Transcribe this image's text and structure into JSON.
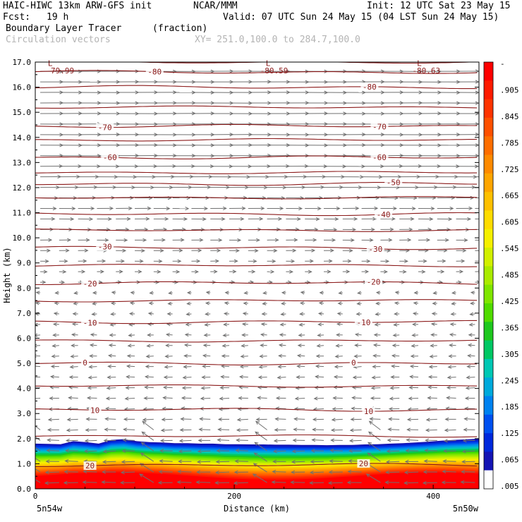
{
  "header": {
    "model": "HAIC-HIWC 13km ARW-GFS init",
    "org": "NCAR/MMM",
    "init": "Init: 12 UTC Sat 23 May 15",
    "fcst_label": "Fcst:",
    "fcst_value": "19 h",
    "valid": "Valid: 07 UTC Sun 24 May 15 (04 LST Sun 24 May 15)",
    "field_name": "Boundary Layer Tracer",
    "field_units": "(fraction)",
    "vector_label": "Circulation vectors",
    "xy_label": "XY= 251.0,100.0 to 284.7,100.0"
  },
  "colors": {
    "contour": "#8b1a1a",
    "vector": "#707070",
    "frame": "#000000",
    "grey_text": "#b4b4b4"
  },
  "chart_data": {
    "type": "heatmap",
    "title": "Boundary Layer Tracer",
    "units": "(fraction)",
    "xlabel": "Distance (km)",
    "ylabel": "Height (km)",
    "xlim": [
      0,
      446
    ],
    "ylim": [
      0,
      17
    ],
    "x_ticks": [
      0,
      200,
      400
    ],
    "y_ticks": [
      "0.0",
      "1.0",
      "2.0",
      "3.0",
      "4.0",
      "5.0",
      "6.0",
      "7.0",
      "8.0",
      "9.0",
      "10.0",
      "11.0",
      "12.0",
      "13.0",
      "14.0",
      "15.0",
      "16.0",
      "17.0"
    ],
    "x_endpoints": [
      "5n54w",
      "5n50w"
    ],
    "colorbar": {
      "labels": [
        "-",
        ".905",
        ".845",
        ".785",
        ".725",
        ".665",
        ".605",
        ".545",
        ".485",
        ".425",
        ".365",
        ".305",
        ".245",
        ".185",
        ".125",
        ".065",
        ".005"
      ],
      "colors": [
        "#ff0000",
        "#ff1a00",
        "#ff3300",
        "#ff5000",
        "#ff6e00",
        "#ff8a00",
        "#ffa500",
        "#ffc000",
        "#ffdc00",
        "#f5f000",
        "#d2f000",
        "#aaeb00",
        "#7fe600",
        "#50dc00",
        "#1ec81e",
        "#00c864",
        "#00c8b4",
        "#00aadc",
        "#0082f0",
        "#0050f0",
        "#0028dc",
        "#1414b4",
        "#ffffff"
      ]
    },
    "tracer_top_km": [
      1.8,
      1.79,
      1.78,
      1.9,
      1.86,
      1.8,
      1.95,
      1.98,
      1.9,
      1.86,
      1.85,
      1.82,
      1.82,
      1.8,
      1.8,
      1.78,
      1.78,
      1.77,
      1.77,
      1.76,
      1.76,
      1.75,
      1.75,
      1.74,
      1.75,
      1.75,
      1.77,
      1.78,
      1.8,
      1.82,
      1.85,
      1.88,
      1.92,
      1.95,
      1.97,
      2.0
    ],
    "isotherms": [
      {
        "label": "-80",
        "h": 16.6,
        "label_x": [
          120
        ]
      },
      {
        "label": "-80",
        "h": 16.0,
        "label_x": [
          336
        ]
      },
      {
        "label": "-70",
        "h": 14.45,
        "label_x": [
          70,
          346
        ]
      },
      {
        "label": "-60",
        "h": 13.2,
        "label_x": [
          75,
          346
        ]
      },
      {
        "label": "-50",
        "h": 12.15,
        "label_x": [
          360
        ]
      },
      {
        "label": "-40",
        "h": 10.95,
        "label_x": [
          350
        ]
      },
      {
        "label": "-30",
        "h": 9.6,
        "label_x": [
          70,
          342
        ]
      },
      {
        "label": "-20",
        "h": 8.2,
        "label_x": [
          55,
          340
        ]
      },
      {
        "label": "-10",
        "h": 6.65,
        "label_x": [
          55,
          330
        ]
      },
      {
        "label": "0",
        "h": 5.0,
        "label_x": [
          50,
          320
        ]
      },
      {
        "label": "10",
        "h": 3.15,
        "label_x": [
          60,
          335
        ]
      },
      {
        "label": "20",
        "h": 0.95,
        "label_x": [
          55,
          330
        ]
      }
    ],
    "extra_isotherm_heights_km": [
      17.0,
      15.2,
      13.9,
      12.6,
      11.6,
      10.3,
      8.9,
      7.5,
      5.9,
      4.1,
      2.1
    ],
    "min_markers": [
      {
        "label": "L",
        "x": 15,
        "h": 16.85
      },
      {
        "label": "L",
        "x": 234,
        "h": 16.85
      },
      {
        "label": "L",
        "x": 386,
        "h": 16.85
      }
    ],
    "min_values": [
      {
        "label": "-79.99",
        "x": 25,
        "h": 16.55
      },
      {
        "label": "-80.59",
        "x": 240,
        "h": 16.55
      },
      {
        "label": "-80.63",
        "x": 393,
        "h": 16.55
      }
    ],
    "circulation_vectors": [
      {
        "h_from": 8.0,
        "h_to": 17.0,
        "direction": "east"
      },
      {
        "h_from": 0.0,
        "h_to": 8.0,
        "direction": "west"
      }
    ]
  }
}
